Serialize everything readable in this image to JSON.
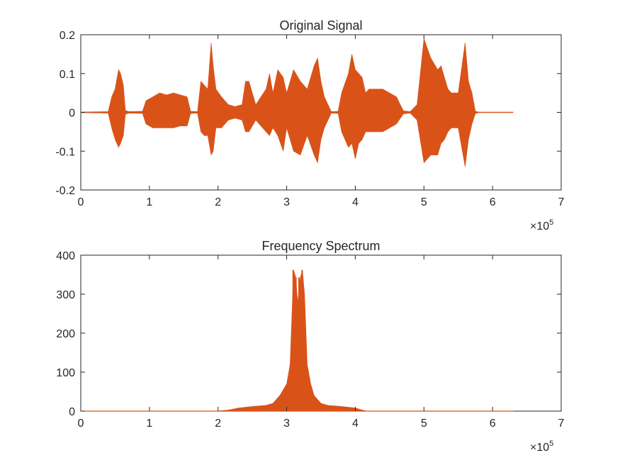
{
  "colors": {
    "series": "#D95319",
    "axes": "#262626",
    "background": "#FFFFFF"
  },
  "chart_data": [
    {
      "type": "line",
      "title": "Original Signal",
      "xlabel": "",
      "ylabel": "",
      "xlim": [
        0,
        700000
      ],
      "ylim": [
        -0.2,
        0.2
      ],
      "x_ticks": [
        0,
        1,
        2,
        3,
        4,
        5,
        6,
        7
      ],
      "y_ticks": [
        "-0.2",
        "-0.1",
        "0",
        "0.1",
        "0.2"
      ],
      "x_exponent": {
        "base": "×10",
        "power": "5"
      },
      "grid": false,
      "legend": false,
      "n_samples": 630000,
      "envelope": {
        "x": [
          0,
          40000,
          45000,
          50000,
          55000,
          58000,
          62000,
          65000,
          70000,
          90000,
          95000,
          105000,
          115000,
          125000,
          135000,
          145000,
          155000,
          160000,
          170000,
          175000,
          180000,
          185000,
          190000,
          193000,
          197000,
          205000,
          215000,
          225000,
          235000,
          240000,
          245000,
          255000,
          270000,
          275000,
          280000,
          287000,
          295000,
          300000,
          310000,
          320000,
          330000,
          340000,
          345000,
          350000,
          355000,
          365000,
          375000,
          380000,
          390000,
          395000,
          400000,
          405000,
          410000,
          415000,
          420000,
          430000,
          440000,
          450000,
          460000,
          470000,
          480000,
          490000,
          500000,
          510000,
          520000,
          525000,
          530000,
          535000,
          540000,
          550000,
          560000,
          565000,
          570000,
          575000,
          580000,
          590000,
          600000,
          605000,
          610000,
          615000,
          620000,
          630000
        ],
        "pos": [
          0.001,
          0.002,
          0.04,
          0.06,
          0.11,
          0.1,
          0.07,
          0.005,
          0.002,
          0.003,
          0.03,
          0.04,
          0.05,
          0.045,
          0.05,
          0.045,
          0.04,
          0.003,
          0.002,
          0.08,
          0.07,
          0.06,
          0.18,
          0.12,
          0.06,
          0.04,
          0.02,
          0.015,
          0.02,
          0.08,
          0.08,
          0.02,
          0.06,
          0.1,
          0.05,
          0.11,
          0.09,
          0.05,
          0.11,
          0.08,
          0.06,
          0.12,
          0.14,
          0.08,
          0.04,
          0.002,
          0.003,
          0.05,
          0.1,
          0.15,
          0.11,
          0.1,
          0.09,
          0.05,
          0.06,
          0.06,
          0.06,
          0.05,
          0.04,
          0.004,
          0.002,
          0.02,
          0.19,
          0.14,
          0.11,
          0.12,
          0.09,
          0.06,
          0.05,
          0.05,
          0.18,
          0.08,
          0.05,
          0.003,
          0.001,
          0.001,
          0.001,
          0.001,
          0.001,
          0.001,
          0.001,
          0.001
        ],
        "neg": [
          0.001,
          0.002,
          0.04,
          0.07,
          0.09,
          0.08,
          0.06,
          0.005,
          0.002,
          0.003,
          0.03,
          0.04,
          0.04,
          0.04,
          0.04,
          0.035,
          0.035,
          0.003,
          0.002,
          0.05,
          0.06,
          0.06,
          0.11,
          0.1,
          0.04,
          0.04,
          0.02,
          0.015,
          0.02,
          0.05,
          0.05,
          0.02,
          0.05,
          0.06,
          0.04,
          0.06,
          0.1,
          0.04,
          0.1,
          0.11,
          0.06,
          0.11,
          0.13,
          0.07,
          0.04,
          0.002,
          0.003,
          0.05,
          0.09,
          0.08,
          0.12,
          0.08,
          0.07,
          0.05,
          0.05,
          0.05,
          0.05,
          0.04,
          0.03,
          0.004,
          0.002,
          0.02,
          0.13,
          0.11,
          0.11,
          0.08,
          0.07,
          0.05,
          0.04,
          0.04,
          0.14,
          0.07,
          0.03,
          0.003,
          0.001,
          0.001,
          0.001,
          0.001,
          0.001,
          0.001,
          0.001,
          0.001
        ]
      }
    },
    {
      "type": "line",
      "title": "Frequency Spectrum",
      "xlabel": "",
      "ylabel": "",
      "xlim": [
        0,
        700000
      ],
      "ylim": [
        0,
        400
      ],
      "x_ticks": [
        0,
        1,
        2,
        3,
        4,
        5,
        6,
        7
      ],
      "y_ticks": [
        "0",
        "100",
        "200",
        "300",
        "400"
      ],
      "x_exponent": {
        "base": "×10",
        "power": "5"
      },
      "grid": false,
      "legend": false,
      "n_samples": 630000,
      "envelope": {
        "x": [
          0,
          200000,
          215000,
          230000,
          250000,
          270000,
          280000,
          290000,
          300000,
          305000,
          310000,
          313000,
          316000,
          320000,
          323000,
          326000,
          330000,
          335000,
          340000,
          350000,
          360000,
          380000,
          400000,
          410000,
          415000,
          430000,
          630000
        ],
        "top": [
          0.5,
          0.5,
          3,
          8,
          12,
          15,
          20,
          40,
          70,
          120,
          362,
          345,
          280,
          343,
          362,
          300,
          120,
          70,
          40,
          20,
          15,
          12,
          8,
          3,
          1,
          0.5,
          0.5
        ],
        "spikes": [
          {
            "x": 309500,
            "y": 362
          },
          {
            "x": 313500,
            "y": 343
          },
          {
            "x": 318000,
            "y": 343
          },
          {
            "x": 322500,
            "y": 362
          }
        ]
      }
    }
  ]
}
